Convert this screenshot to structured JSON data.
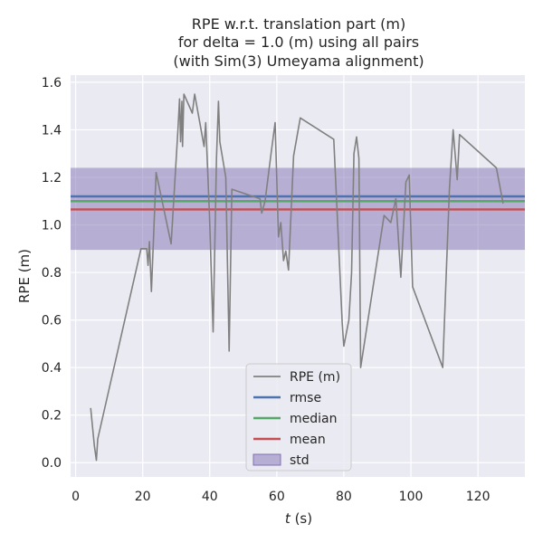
{
  "chart_data": {
    "type": "line",
    "title_lines": [
      "RPE w.r.t. translation part (m)",
      "for delta = 1.0 (m) using all pairs",
      "(with Sim(3) Umeyama alignment)"
    ],
    "xlabel_italic": "t",
    "xlabel_suffix": " (s)",
    "ylabel": "RPE (m)",
    "xlim": [
      -1.5,
      134
    ],
    "ylim": [
      -0.06,
      1.63
    ],
    "xticks": [
      0,
      20,
      40,
      60,
      80,
      100,
      120
    ],
    "yticks": [
      0.0,
      0.2,
      0.4,
      0.6,
      0.8,
      1.0,
      1.2,
      1.4,
      1.6
    ],
    "grid": true,
    "legend_position": "bottom-center",
    "series": [
      {
        "name": "RPE (m)",
        "color": "#808080",
        "x": [
          4.5,
          5.6,
          6.2,
          6.6,
          19.5,
          21.2,
          21.6,
          22.0,
          22.6,
          24.0,
          28.5,
          30.5,
          31.0,
          31.3,
          31.7,
          31.9,
          32.3,
          34.8,
          35.5,
          38.3,
          38.8,
          39.9,
          41.0,
          42.0,
          42.6,
          43.0,
          44.8,
          45.8,
          46.6,
          55.0,
          55.5,
          56.5,
          58.3,
          59.5,
          60.5,
          61.2,
          62.0,
          62.7,
          63.5,
          65.0,
          67.0,
          77.0,
          79.5,
          80.0,
          81.5,
          82.3,
          83.0,
          83.8,
          84.5,
          85.0,
          92.0,
          94.0,
          95.5,
          97.0,
          98.5,
          99.5,
          100.5,
          109.5,
          111.5,
          112.6,
          113.8,
          114.5,
          125.5,
          127.5
        ],
        "y": [
          0.23,
          0.07,
          0.01,
          0.1,
          0.9,
          0.9,
          0.83,
          0.93,
          0.72,
          1.22,
          0.92,
          1.4,
          1.53,
          1.35,
          1.52,
          1.33,
          1.55,
          1.47,
          1.55,
          1.33,
          1.43,
          1.05,
          0.55,
          1.28,
          1.52,
          1.35,
          1.2,
          0.47,
          1.15,
          1.11,
          1.05,
          1.1,
          1.3,
          1.43,
          0.95,
          1.01,
          0.85,
          0.89,
          0.81,
          1.29,
          1.45,
          1.36,
          0.59,
          0.49,
          0.6,
          0.8,
          1.3,
          1.37,
          1.28,
          0.4,
          1.04,
          1.01,
          1.11,
          0.78,
          1.18,
          1.21,
          0.74,
          0.4,
          1.15,
          1.4,
          1.19,
          1.38,
          1.24,
          1.09
        ]
      },
      {
        "name": "rmse",
        "color": "#4c72b0",
        "value": 1.12
      },
      {
        "name": "median",
        "color": "#55a868",
        "value": 1.1
      },
      {
        "name": "mean",
        "color": "#c44e52",
        "value": 1.065
      },
      {
        "name": "std",
        "color": "#8172b3",
        "range": [
          0.895,
          1.24
        ]
      }
    ]
  }
}
